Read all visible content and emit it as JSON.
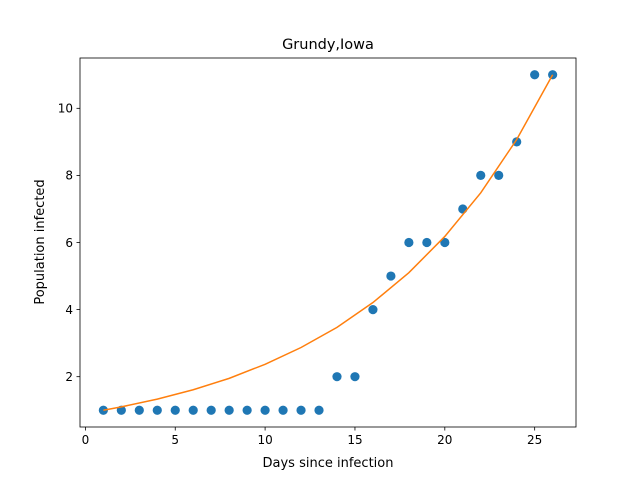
{
  "chart_data": {
    "type": "scatter",
    "title": "Grundy,Iowa",
    "xlabel": "Days since infection",
    "ylabel": "Population infected",
    "xlim": [
      -0.3,
      27.3
    ],
    "ylim": [
      0.5,
      11.5
    ],
    "xticks": [
      0,
      5,
      10,
      15,
      20,
      25
    ],
    "yticks": [
      2,
      4,
      6,
      8,
      10
    ],
    "grid": false,
    "legend": "none",
    "series": [
      {
        "kind": "points",
        "color": "#1f77b4",
        "x": [
          1,
          2,
          3,
          4,
          5,
          6,
          7,
          8,
          9,
          10,
          11,
          12,
          13,
          14,
          15,
          16,
          17,
          18,
          19,
          20,
          21,
          22,
          23,
          24,
          25,
          26
        ],
        "y": [
          1,
          1,
          1,
          1,
          1,
          1,
          1,
          1,
          1,
          1,
          1,
          1,
          1,
          2,
          2,
          4,
          5,
          6,
          6,
          6,
          7,
          8,
          8,
          9,
          11,
          11
        ]
      },
      {
        "kind": "line",
        "color": "#ff7f0e",
        "x": [
          1,
          2,
          4,
          6,
          8,
          10,
          12,
          14,
          16,
          18,
          20,
          22,
          24,
          26
        ],
        "y": [
          1.0,
          1.1,
          1.33,
          1.61,
          1.95,
          2.37,
          2.87,
          3.47,
          4.21,
          5.1,
          6.18,
          7.48,
          9.07,
          11.0
        ]
      }
    ]
  }
}
